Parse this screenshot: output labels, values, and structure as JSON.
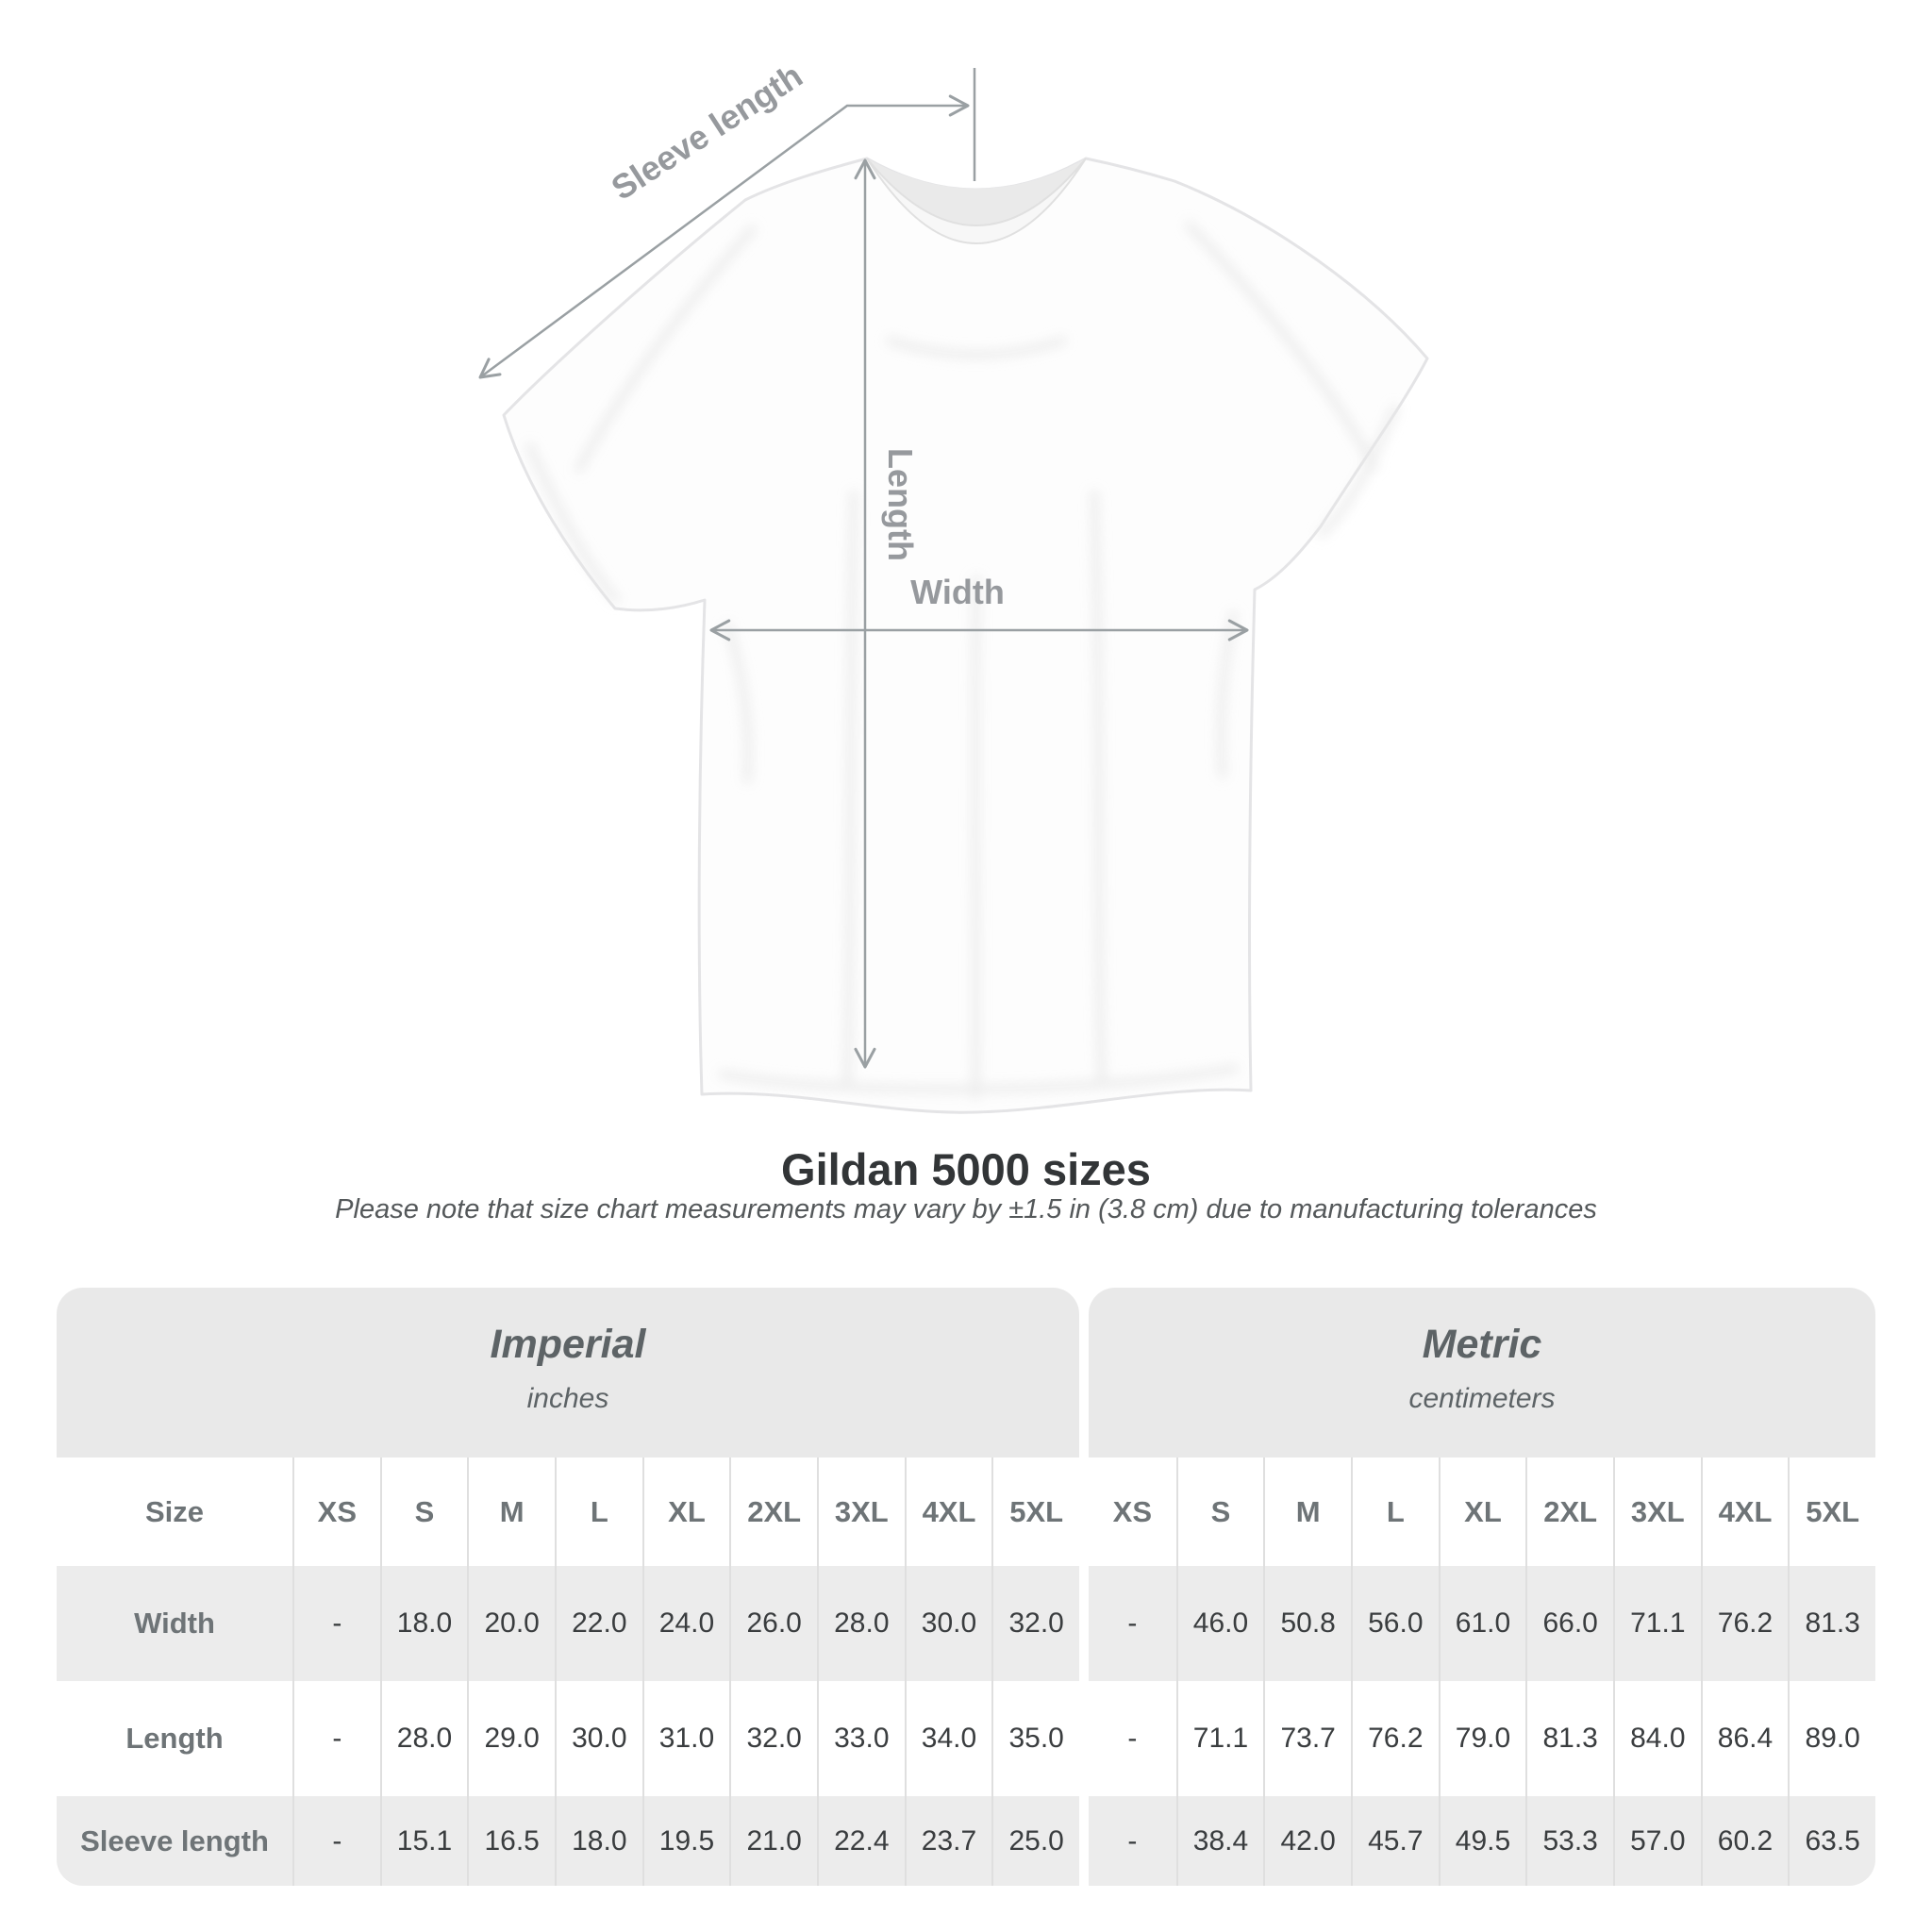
{
  "diagram": {
    "sleeve_length_label": "Sleeve length",
    "length_label": "Length",
    "width_label": "Width"
  },
  "title": "Gildan 5000 sizes",
  "subtitle": "Please note that size chart measurements may vary by ±1.5 in (3.8 cm) due to manufacturing tolerances",
  "table": {
    "sections": [
      {
        "label": "Imperial",
        "sublabel": "inches"
      },
      {
        "label": "Metric",
        "sublabel": "centimeters"
      }
    ],
    "size_header": "Size",
    "sizes": [
      "XS",
      "S",
      "M",
      "L",
      "XL",
      "2XL",
      "3XL",
      "4XL",
      "5XL"
    ],
    "rows": [
      {
        "label": "Width",
        "imperial": [
          "-",
          "18.0",
          "20.0",
          "22.0",
          "24.0",
          "26.0",
          "28.0",
          "30.0",
          "32.0"
        ],
        "metric": [
          "-",
          "46.0",
          "50.8",
          "56.0",
          "61.0",
          "66.0",
          "71.1",
          "76.2",
          "81.3"
        ]
      },
      {
        "label": "Length",
        "imperial": [
          "-",
          "28.0",
          "29.0",
          "30.0",
          "31.0",
          "32.0",
          "33.0",
          "34.0",
          "35.0"
        ],
        "metric": [
          "-",
          "71.1",
          "73.7",
          "76.2",
          "79.0",
          "81.3",
          "84.0",
          "86.4",
          "89.0"
        ]
      },
      {
        "label": "Sleeve length",
        "imperial": [
          "-",
          "15.1",
          "16.5",
          "18.0",
          "19.5",
          "21.0",
          "22.4",
          "23.7",
          "25.0"
        ],
        "metric": [
          "-",
          "38.4",
          "42.0",
          "45.7",
          "49.5",
          "53.3",
          "57.0",
          "60.2",
          "63.5"
        ]
      }
    ]
  },
  "colors": {
    "header_band": "#e9e9e9",
    "row_gray": "#ececec",
    "label_text": "#6e7477",
    "value_text": "#3a3d3f",
    "annotation_gray": "#9aa0a3"
  },
  "chart_data": {
    "type": "table",
    "title": "Gildan 5000 sizes",
    "note": "Please note that size chart measurements may vary by ±1.5 in (3.8 cm) due to manufacturing tolerances",
    "sizes": [
      "XS",
      "S",
      "M",
      "L",
      "XL",
      "2XL",
      "3XL",
      "4XL",
      "5XL"
    ],
    "sections": [
      {
        "name": "Imperial",
        "unit": "inches",
        "rows": [
          {
            "measurement": "Width",
            "values": [
              null,
              18.0,
              20.0,
              22.0,
              24.0,
              26.0,
              28.0,
              30.0,
              32.0
            ]
          },
          {
            "measurement": "Length",
            "values": [
              null,
              28.0,
              29.0,
              30.0,
              31.0,
              32.0,
              33.0,
              34.0,
              35.0
            ]
          },
          {
            "measurement": "Sleeve length",
            "values": [
              null,
              15.1,
              16.5,
              18.0,
              19.5,
              21.0,
              22.4,
              23.7,
              25.0
            ]
          }
        ]
      },
      {
        "name": "Metric",
        "unit": "centimeters",
        "rows": [
          {
            "measurement": "Width",
            "values": [
              null,
              46.0,
              50.8,
              56.0,
              61.0,
              66.0,
              71.1,
              76.2,
              81.3
            ]
          },
          {
            "measurement": "Length",
            "values": [
              null,
              71.1,
              73.7,
              76.2,
              79.0,
              81.3,
              84.0,
              86.4,
              89.0
            ]
          },
          {
            "measurement": "Sleeve length",
            "values": [
              null,
              38.4,
              42.0,
              45.7,
              49.5,
              53.3,
              57.0,
              60.2,
              63.5
            ]
          }
        ]
      }
    ]
  }
}
